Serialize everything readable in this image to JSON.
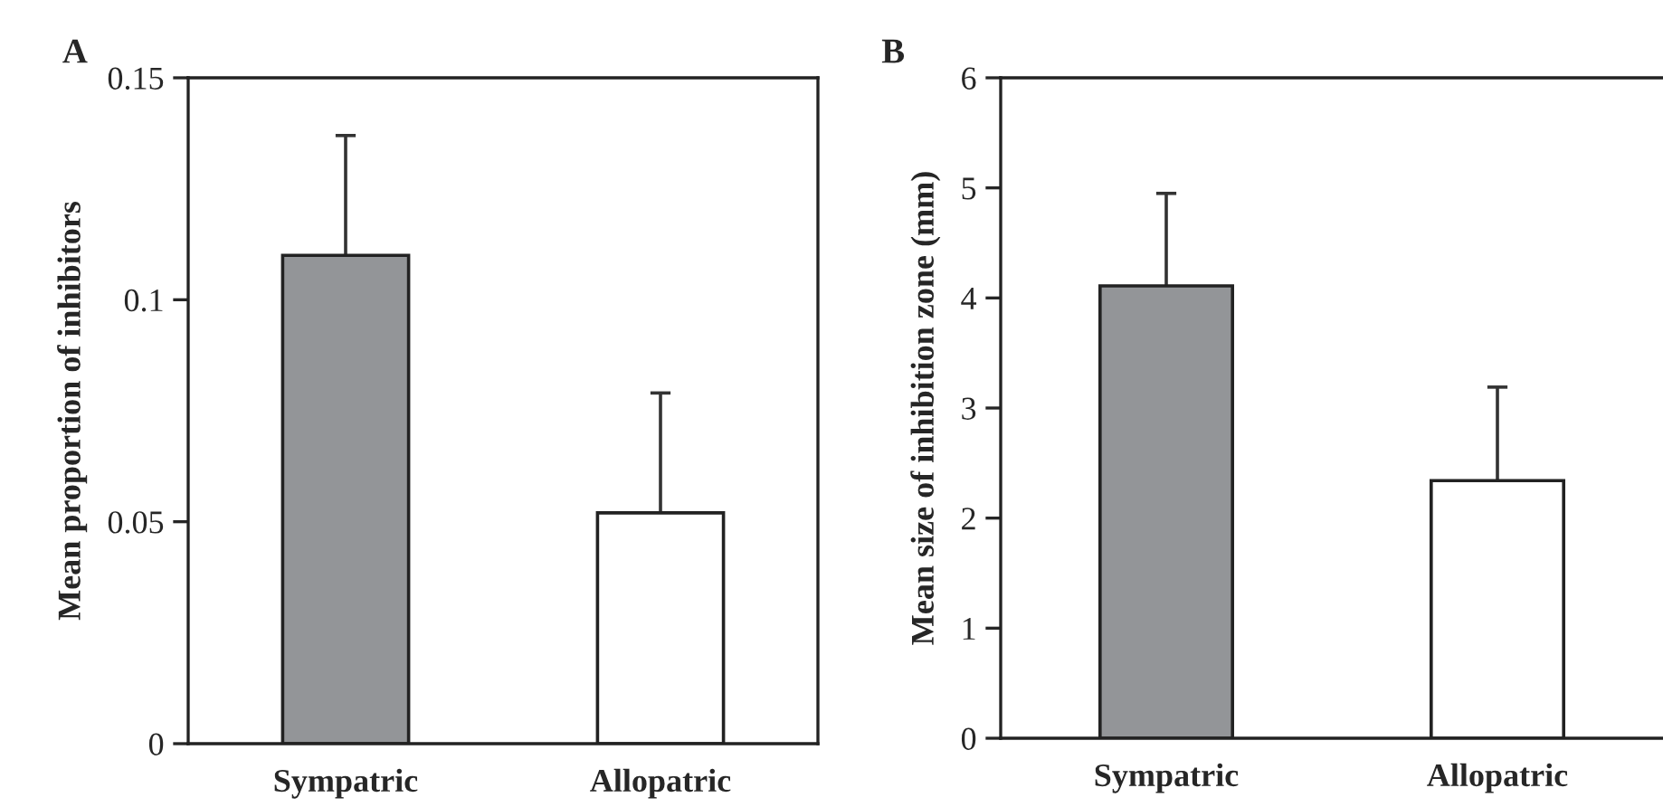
{
  "chart_data": [
    {
      "type": "bar",
      "title": "A",
      "ylabel": "Mean proportion of inhibitors",
      "categories": [
        "Sympatric",
        "Allopatric"
      ],
      "values": [
        0.11,
        0.052
      ],
      "errors": [
        0.027,
        0.027
      ],
      "colors": [
        "#939598",
        "#ffffff"
      ],
      "ylim": [
        0,
        0.15
      ],
      "yticks": [
        {
          "value": 0,
          "label": "0"
        },
        {
          "value": 0.05,
          "label": "0.05"
        },
        {
          "value": 0.1,
          "label": "0.1"
        },
        {
          "value": 0.15,
          "label": "0.15"
        }
      ],
      "grid": false,
      "legend": false
    },
    {
      "type": "bar",
      "title": "B",
      "ylabel": "Mean size of inhibition zone (mm)",
      "categories": [
        "Sympatric",
        "Allopatric"
      ],
      "values": [
        4.11,
        2.34
      ],
      "errors": [
        0.84,
        0.85
      ],
      "colors": [
        "#939598",
        "#ffffff"
      ],
      "ylim": [
        0,
        6
      ],
      "yticks": [
        0,
        1,
        2,
        3,
        4,
        5,
        6
      ],
      "grid": false,
      "legend": false
    }
  ]
}
